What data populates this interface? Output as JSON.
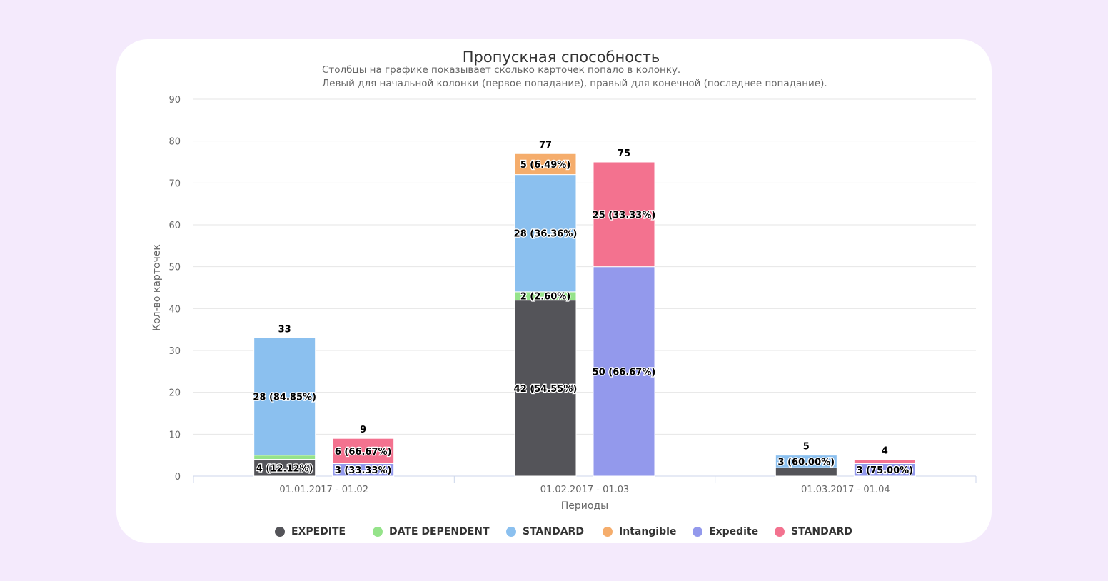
{
  "colors": {
    "page_bg": "#f4eafc",
    "card_bg": "#ffffff"
  },
  "chart_data": {
    "type": "bar",
    "stacked": true,
    "title": "Пропускная способность",
    "subtitle": [
      "Столбцы на графике показывает сколько карточек попало в колонку.",
      "Левый для начальной колонки (первое попадание), правый для конечной (последнее попадание)."
    ],
    "xlabel": "Периоды",
    "ylabel": "Кол-во карточек",
    "ylim": [
      0,
      90
    ],
    "yticks": [
      "0",
      "10",
      "20",
      "30",
      "40",
      "50",
      "60",
      "70",
      "80",
      "90"
    ],
    "categories": [
      "01.01.2017 - 01.02",
      "01.02.2017 - 01.03",
      "01.03.2017 - 01.04"
    ],
    "grid": true,
    "legend_position": "bottom",
    "legend": [
      {
        "label": "EXPEDITE",
        "color": "#545459"
      },
      {
        "label": "DATE DEPENDENT",
        "color": "#95e38a"
      },
      {
        "label": "STANDARD",
        "color": "#8bc0ef"
      },
      {
        "label": "Intangible",
        "color": "#f5ad6c"
      },
      {
        "label": "Expedite",
        "color": "#9399ec"
      },
      {
        "label": "STANDARD",
        "color": "#f3728f"
      }
    ],
    "stacks": [
      {
        "stack": "start",
        "series": [
          {
            "name": "EXPEDITE",
            "color": "#545459",
            "values": [
              4,
              42,
              2
            ],
            "labels": [
              "4 (12.12%)",
              "42 (54.55%)",
              ""
            ]
          },
          {
            "name": "DATE DEPENDENT",
            "color": "#95e38a",
            "values": [
              1,
              2,
              0
            ],
            "labels": [
              "",
              "2 (2.60%)",
              ""
            ]
          },
          {
            "name": "STANDARD",
            "color": "#8bc0ef",
            "values": [
              28,
              28,
              3
            ],
            "labels": [
              "28 (84.85%)",
              "28 (36.36%)",
              "3 (60.00%)"
            ]
          },
          {
            "name": "Intangible",
            "color": "#f5ad6c",
            "values": [
              0,
              5,
              0
            ],
            "labels": [
              "",
              "5 (6.49%)",
              ""
            ]
          }
        ],
        "totals": [
          "33",
          "77",
          "5"
        ]
      },
      {
        "stack": "end",
        "series": [
          {
            "name": "Expedite",
            "color": "#9399ec",
            "values": [
              3,
              50,
              3
            ],
            "labels": [
              "3 (33.33%)",
              "50 (66.67%)",
              "3 (75.00%)"
            ]
          },
          {
            "name": "STANDARD",
            "color": "#f3728f",
            "values": [
              6,
              25,
              1
            ],
            "labels": [
              "6 (66.67%)",
              "25 (33.33%)",
              ""
            ]
          }
        ],
        "totals": [
          "9",
          "75",
          "4"
        ]
      }
    ]
  }
}
